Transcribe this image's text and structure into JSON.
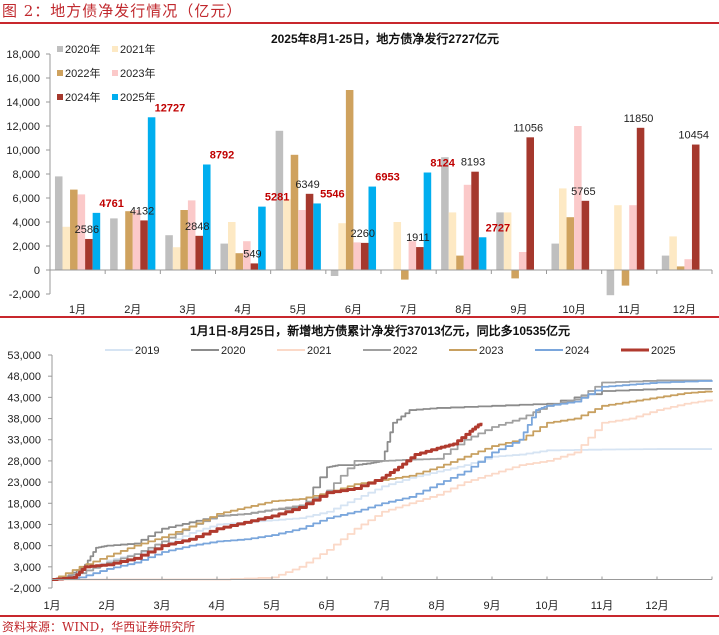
{
  "figure": {
    "title": "图 2：地方债净发行情况（亿元）",
    "source": "资料来源：WIND，华西证券研究所"
  },
  "chart_data": [
    {
      "type": "bar",
      "title": "2025年8月1-25日，地方债净发行2727亿元",
      "xlabel": "",
      "ylabel": "",
      "ylim": [
        -2000,
        18000
      ],
      "yticks": [
        -2000,
        0,
        2000,
        4000,
        6000,
        8000,
        10000,
        12000,
        14000,
        16000,
        18000
      ],
      "ytick_labels": [
        "-2,000",
        "0",
        "2,000",
        "4,000",
        "6,000",
        "8,000",
        "10,000",
        "12,000",
        "14,000",
        "16,000",
        "18,000"
      ],
      "categories": [
        "1月",
        "2月",
        "3月",
        "4月",
        "5月",
        "6月",
        "7月",
        "8月",
        "9月",
        "10月",
        "11月",
        "12月"
      ],
      "legend_position": "top-left",
      "grid": false,
      "series": [
        {
          "name": "2020年",
          "color": "#bfbfbf",
          "values": [
            7800,
            4300,
            2900,
            2200,
            11600,
            -500,
            0,
            9400,
            4800,
            2200,
            -2100,
            1200
          ]
        },
        {
          "name": "2021年",
          "color": "#fde9c4",
          "values": [
            3600,
            0,
            1900,
            4000,
            5900,
            3900,
            4000,
            4800,
            4800,
            6800,
            5400,
            2800
          ]
        },
        {
          "name": "2022年",
          "color": "#cfa25e",
          "values": [
            6700,
            4900,
            5000,
            1400,
            9600,
            15000,
            -800,
            1200,
            -700,
            4400,
            -1300,
            300
          ]
        },
        {
          "name": "2023年",
          "color": "#fbc9c9",
          "values": [
            6300,
            5000,
            5800,
            2400,
            5000,
            2300,
            2400,
            7100,
            1500,
            12000,
            5400,
            900
          ]
        },
        {
          "name": "2024年",
          "color": "#a5382d",
          "values": [
            2586,
            4132,
            2848,
            549,
            6349,
            2260,
            1911,
            8193,
            11056,
            5765,
            11850,
            10454
          ]
        },
        {
          "name": "2025年",
          "color": "#00aeef",
          "values": [
            4761,
            12727,
            8792,
            5281,
            5546,
            6953,
            8124,
            2727,
            null,
            null,
            null,
            null
          ]
        }
      ],
      "data_labels": [
        {
          "series": "2024年",
          "category": "1月",
          "text": "2586",
          "style": "black"
        },
        {
          "series": "2025年",
          "category": "1月",
          "text": "4761",
          "style": "red"
        },
        {
          "series": "2024年",
          "category": "2月",
          "text": "4132",
          "style": "black"
        },
        {
          "series": "2025年",
          "category": "2月",
          "text": "12727",
          "style": "red"
        },
        {
          "series": "2024年",
          "category": "3月",
          "text": "2848",
          "style": "black"
        },
        {
          "series": "2025年",
          "category": "3月",
          "text": "8792",
          "style": "red"
        },
        {
          "series": "2024年",
          "category": "4月",
          "text": "549",
          "style": "black"
        },
        {
          "series": "2025年",
          "category": "4月",
          "text": "5281",
          "style": "red"
        },
        {
          "series": "2024年",
          "category": "5月",
          "text": "6349",
          "style": "black"
        },
        {
          "series": "2025年",
          "category": "5月",
          "text": "5546",
          "style": "red"
        },
        {
          "series": "2024年",
          "category": "6月",
          "text": "2260",
          "style": "black"
        },
        {
          "series": "2025年",
          "category": "6月",
          "text": "6953",
          "style": "red"
        },
        {
          "series": "2024年",
          "category": "7月",
          "text": "1911",
          "style": "black"
        },
        {
          "series": "2025年",
          "category": "7月",
          "text": "8124",
          "style": "red"
        },
        {
          "series": "2024年",
          "category": "8月",
          "text": "8193",
          "style": "black"
        },
        {
          "series": "2025年",
          "category": "8月",
          "text": "2727",
          "style": "red"
        },
        {
          "series": "2024年",
          "category": "9月",
          "text": "11056",
          "style": "black"
        },
        {
          "series": "2024年",
          "category": "10月",
          "text": "5765",
          "style": "black"
        },
        {
          "series": "2024年",
          "category": "11月",
          "text": "11850",
          "style": "black"
        },
        {
          "series": "2024年",
          "category": "12月",
          "text": "10454",
          "style": "black"
        }
      ]
    },
    {
      "type": "line",
      "title": "1月1日-8月25日，新增地方债累计净发行37013亿元，同比多10535亿元",
      "xlabel": "",
      "ylabel": "",
      "ylim": [
        -2000,
        53000
      ],
      "yticks": [
        -2000,
        3000,
        8000,
        13000,
        18000,
        23000,
        28000,
        33000,
        38000,
        43000,
        48000,
        53000
      ],
      "ytick_labels": [
        "-2,000",
        "3,000",
        "8,000",
        "13,000",
        "18,000",
        "23,000",
        "28,000",
        "33,000",
        "38,000",
        "43,000",
        "48,000",
        "53,000"
      ],
      "x_unit": "month (1 = Jan 1)",
      "xlim": [
        1,
        13
      ],
      "x_tick_labels": [
        "1月",
        "2月",
        "3月",
        "4月",
        "5月",
        "6月",
        "7月",
        "8月",
        "9月",
        "10月",
        "11月",
        "12月"
      ],
      "legend_position": "top",
      "grid": false,
      "series": [
        {
          "name": "2019",
          "color": "#d6e4f3",
          "x": [
            1,
            1.5,
            2,
            2.5,
            3,
            3.5,
            4,
            4.5,
            5,
            5.5,
            6,
            6.5,
            7,
            7.5,
            8,
            8.5,
            9,
            9.5,
            10,
            11,
            12,
            13
          ],
          "y": [
            0,
            1500,
            4500,
            6000,
            8000,
            11000,
            13000,
            13500,
            14000,
            14500,
            16000,
            19000,
            22000,
            24000,
            25500,
            27000,
            29000,
            29500,
            30500,
            30700,
            30800,
            30800
          ]
        },
        {
          "name": "2020",
          "color": "#8c8c8c",
          "x": [
            1,
            1.3,
            1.6,
            1.8,
            2,
            2.5,
            3,
            3.5,
            4,
            4.5,
            5,
            5.5,
            6,
            6.2,
            6.5,
            6.8,
            7,
            7.2,
            7.5,
            8,
            9,
            10,
            11,
            12,
            13
          ],
          "y": [
            0,
            1000,
            3500,
            7500,
            8000,
            8500,
            12000,
            13500,
            15000,
            15500,
            16500,
            17000,
            26500,
            27000,
            27000,
            27500,
            28000,
            37000,
            40000,
            40500,
            41000,
            41500,
            44500,
            45000,
            45000
          ]
        },
        {
          "name": "2021",
          "color": "#fbd9c8",
          "x": [
            1,
            4,
            5,
            5.5,
            6,
            6.5,
            7,
            7.5,
            8,
            8.5,
            9,
            9.5,
            10,
            10.5,
            11,
            11.5,
            12,
            12.5,
            13
          ],
          "y": [
            0,
            0,
            500,
            3000,
            7000,
            12000,
            16000,
            18000,
            20000,
            23000,
            25000,
            27000,
            28000,
            30000,
            37000,
            38000,
            40000,
            41500,
            42500
          ]
        },
        {
          "name": "2022",
          "color": "#a0a0a0",
          "x": [
            1,
            1.5,
            2,
            2.5,
            3,
            3.5,
            4,
            4.5,
            5,
            5.5,
            6,
            6.5,
            7,
            7.5,
            8,
            8.5,
            9,
            9.5,
            10,
            10.5,
            11,
            12,
            13
          ],
          "y": [
            0,
            1500,
            4000,
            6000,
            9000,
            12500,
            15000,
            15500,
            16500,
            17500,
            21000,
            28000,
            28000,
            28300,
            28500,
            33000,
            36000,
            38000,
            41000,
            42500,
            46500,
            47000,
            47000
          ]
        },
        {
          "name": "2023",
          "color": "#c8a060",
          "x": [
            1,
            1.5,
            2,
            2.5,
            3,
            3.5,
            4,
            4.5,
            5,
            5.5,
            6,
            6.5,
            7,
            7.5,
            8,
            8.5,
            9,
            9.5,
            10,
            10.5,
            11,
            11.5,
            12,
            12.5,
            13
          ],
          "y": [
            0,
            3000,
            5500,
            8000,
            10000,
            12500,
            15500,
            17000,
            18500,
            19000,
            20500,
            22500,
            23500,
            24500,
            26500,
            29000,
            31500,
            33000,
            37000,
            38000,
            41000,
            42000,
            43000,
            44000,
            44500
          ]
        },
        {
          "name": "2024",
          "color": "#7aa6dc",
          "x": [
            1,
            1.5,
            2,
            2.5,
            3,
            3.5,
            4,
            4.5,
            5,
            5.5,
            6,
            6.5,
            7,
            7.5,
            8,
            8.5,
            9,
            9.5,
            9.8,
            10,
            10.5,
            11,
            11.5,
            12,
            13
          ],
          "y": [
            0,
            500,
            2500,
            4000,
            6500,
            8000,
            9000,
            9500,
            10500,
            12000,
            14500,
            16000,
            18000,
            19500,
            22500,
            25500,
            30000,
            33000,
            40000,
            41000,
            42000,
            45500,
            46000,
            46500,
            47000
          ]
        },
        {
          "name": "2025",
          "color": "#b03a2e",
          "x": [
            1,
            1.4,
            1.6,
            2,
            2.5,
            3,
            3.5,
            4,
            4.5,
            5,
            5.5,
            6,
            6.5,
            7,
            7.3,
            7.6,
            8,
            8.3,
            8.6,
            8.8
          ],
          "y": [
            0,
            500,
            3000,
            3500,
            5000,
            8000,
            9500,
            12000,
            13500,
            15000,
            17000,
            20500,
            21500,
            24000,
            26500,
            29500,
            31000,
            32000,
            35000,
            37013
          ]
        }
      ]
    }
  ]
}
